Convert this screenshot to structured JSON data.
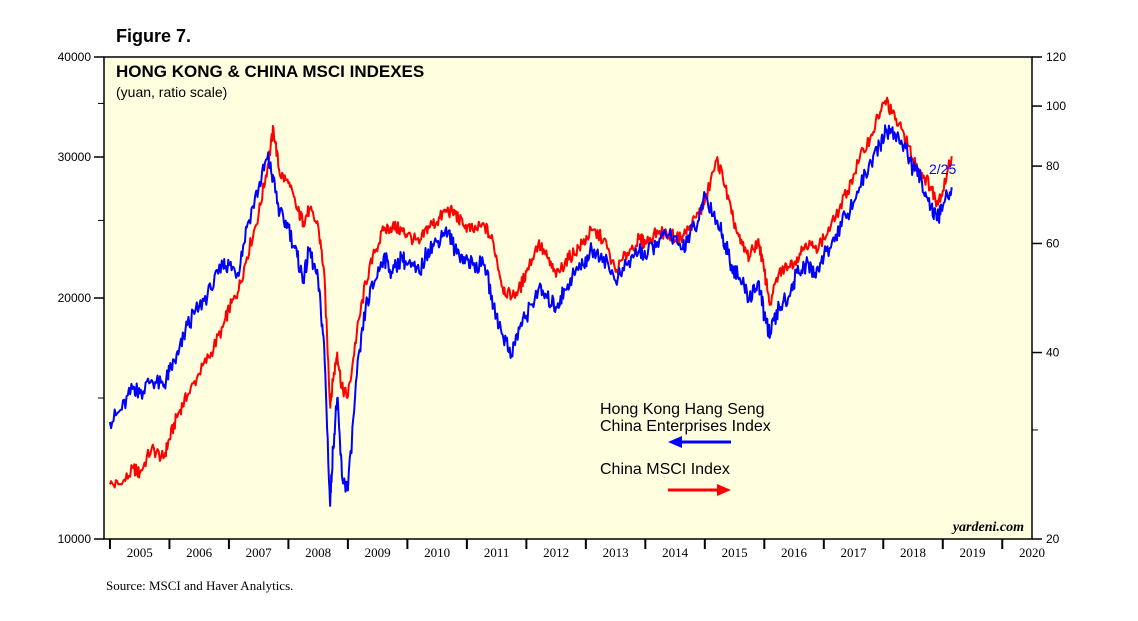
{
  "figure_label": "Figure 7.",
  "source": "Source: MSCI and Haver Analytics.",
  "colors": {
    "plot_bg": "#ffffe0",
    "hsce": "#0000ff",
    "msci": "#ff0000",
    "label_blue": "#0000ff"
  },
  "chart_data": {
    "type": "line",
    "title": "HONG KONG & CHINA MSCI INDEXES",
    "subtitle": "(yuan, ratio scale)",
    "watermark": "yardeni.com",
    "end_label": "2/25",
    "x_range": [
      2004.9,
      2020.5
    ],
    "x_ticks": [
      "2005",
      "2006",
      "2007",
      "2008",
      "2009",
      "2010",
      "2011",
      "2012",
      "2013",
      "2014",
      "2015",
      "2016",
      "2017",
      "2018",
      "2019",
      "2020"
    ],
    "left_axis": {
      "scale": "log",
      "range": [
        10000,
        40000
      ],
      "ticks": [
        "10000",
        "20000",
        "30000",
        "40000"
      ]
    },
    "right_axis": {
      "scale": "log",
      "range": [
        20,
        120
      ],
      "ticks": [
        "20",
        "40",
        "60",
        "80",
        "100",
        "120"
      ]
    },
    "grid": false,
    "legend_texts": {
      "hsce_line1": "Hong Kong Hang Seng",
      "hsce_line2": "China Enterprises Index",
      "msci": "China MSCI Index"
    },
    "series": [
      {
        "name": "Hong Kong Hang Seng China Enterprises Index",
        "axis": "left",
        "x": [
          2005.0,
          2005.2,
          2005.4,
          2005.5,
          2005.7,
          2005.9,
          2006.0,
          2006.15,
          2006.3,
          2006.5,
          2006.7,
          2006.9,
          2007.0,
          2007.15,
          2007.3,
          2007.5,
          2007.65,
          2007.75,
          2007.85,
          2008.0,
          2008.15,
          2008.25,
          2008.35,
          2008.5,
          2008.6,
          2008.7,
          2008.75,
          2008.82,
          2008.9,
          2009.0,
          2009.15,
          2009.3,
          2009.45,
          2009.6,
          2009.75,
          2009.9,
          2010.0,
          2010.2,
          2010.35,
          2010.5,
          2010.65,
          2010.8,
          2010.95,
          2011.1,
          2011.3,
          2011.45,
          2011.6,
          2011.75,
          2011.9,
          2012.0,
          2012.2,
          2012.35,
          2012.5,
          2012.65,
          2012.8,
          2012.95,
          2013.1,
          2013.3,
          2013.5,
          2013.7,
          2013.9,
          2014.0,
          2014.2,
          2014.4,
          2014.6,
          2014.75,
          2014.9,
          2015.0,
          2015.2,
          2015.3,
          2015.45,
          2015.6,
          2015.75,
          2015.9,
          2016.0,
          2016.1,
          2016.25,
          2016.4,
          2016.55,
          2016.7,
          2016.85,
          2017.0,
          2017.2,
          2017.4,
          2017.6,
          2017.8,
          2017.95,
          2018.05,
          2018.2,
          2018.35,
          2018.5,
          2018.65,
          2018.8,
          2018.9,
          2019.0,
          2019.15
        ],
        "values": [
          14000,
          14500,
          15500,
          15200,
          15800,
          15500,
          16200,
          17000,
          18500,
          19500,
          20500,
          22000,
          22000,
          21500,
          24500,
          27500,
          30000,
          28000,
          25500,
          24500,
          22500,
          21000,
          23000,
          21000,
          17500,
          11000,
          13000,
          15000,
          12000,
          11500,
          16000,
          19500,
          21000,
          22500,
          21500,
          22500,
          22000,
          21500,
          23000,
          23500,
          24500,
          23000,
          22500,
          22000,
          22000,
          19500,
          18000,
          17000,
          18500,
          19000,
          20500,
          20000,
          19500,
          20500,
          21500,
          22000,
          23000,
          22500,
          21000,
          22000,
          23000,
          22500,
          23500,
          24000,
          23000,
          24000,
          25000,
          27000,
          25000,
          24000,
          22000,
          21000,
          20000,
          21000,
          19000,
          18000,
          19500,
          20000,
          21500,
          22000,
          21500,
          22500,
          24000,
          25500,
          27500,
          29500,
          31000,
          32500,
          32000,
          31000,
          29000,
          28000,
          26000,
          25000,
          26000,
          27500
        ]
      },
      {
        "name": "China MSCI Index",
        "axis": "right",
        "x": [
          2005.0,
          2005.2,
          2005.4,
          2005.5,
          2005.7,
          2005.9,
          2006.0,
          2006.15,
          2006.3,
          2006.5,
          2006.7,
          2006.9,
          2007.0,
          2007.15,
          2007.3,
          2007.5,
          2007.65,
          2007.75,
          2007.85,
          2008.0,
          2008.15,
          2008.25,
          2008.35,
          2008.5,
          2008.6,
          2008.7,
          2008.75,
          2008.82,
          2008.9,
          2009.0,
          2009.15,
          2009.3,
          2009.45,
          2009.6,
          2009.75,
          2009.9,
          2010.0,
          2010.2,
          2010.35,
          2010.5,
          2010.65,
          2010.8,
          2010.95,
          2011.1,
          2011.3,
          2011.45,
          2011.6,
          2011.75,
          2011.9,
          2012.0,
          2012.2,
          2012.35,
          2012.5,
          2012.65,
          2012.8,
          2012.95,
          2013.1,
          2013.3,
          2013.5,
          2013.7,
          2013.9,
          2014.0,
          2014.2,
          2014.4,
          2014.6,
          2014.75,
          2014.9,
          2015.0,
          2015.2,
          2015.3,
          2015.45,
          2015.6,
          2015.75,
          2015.9,
          2016.0,
          2016.1,
          2016.25,
          2016.4,
          2016.55,
          2016.7,
          2016.85,
          2017.0,
          2017.2,
          2017.4,
          2017.6,
          2017.8,
          2017.95,
          2018.05,
          2018.2,
          2018.35,
          2018.5,
          2018.65,
          2018.8,
          2018.9,
          2019.0,
          2019.15
        ],
        "values": [
          24.5,
          24.5,
          26,
          25.5,
          28,
          27,
          29,
          32,
          34,
          37,
          40,
          44,
          47,
          50,
          57,
          67,
          80,
          92,
          78,
          75,
          68,
          65,
          68,
          64,
          54,
          33,
          36,
          40,
          35,
          34,
          43,
          52,
          58,
          63,
          64,
          63,
          62,
          60,
          64,
          65,
          68,
          67,
          64,
          63,
          64,
          60,
          51,
          49,
          51,
          54,
          60,
          57,
          53,
          56,
          58,
          60,
          63,
          61,
          54,
          58,
          61,
          60,
          63,
          62,
          61,
          64,
          67,
          70,
          82,
          77,
          67,
          60,
          57,
          61,
          54,
          48,
          54,
          55,
          57,
          60,
          59,
          61,
          66,
          73,
          82,
          90,
          98,
          102,
          95,
          90,
          82,
          78,
          74,
          70,
          73,
          83
        ]
      }
    ]
  }
}
